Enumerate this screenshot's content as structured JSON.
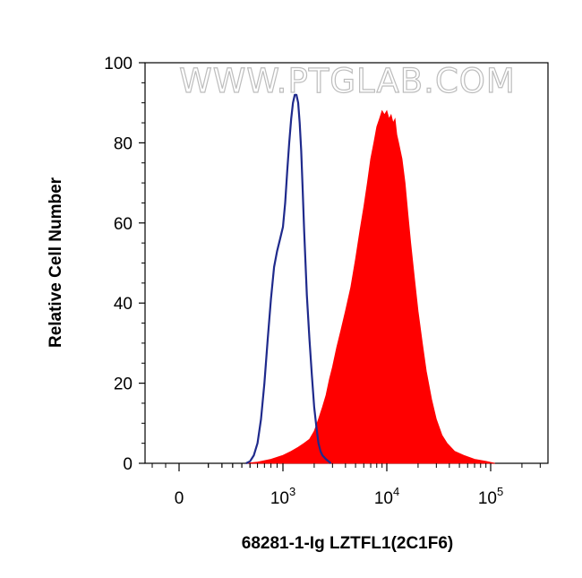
{
  "watermark": "WWW.PTGLAB.COM",
  "chart_data": {
    "type": "area",
    "xlabel": "68281-1-Ig LZTFL1(2C1F6)",
    "ylabel": "Relative Cell Number",
    "x_scale": "biexponential (log for decades)",
    "xlim": [
      -600,
      400000
    ],
    "ylim": [
      0,
      100
    ],
    "y_ticks": [
      0,
      20,
      40,
      60,
      80,
      100
    ],
    "x_ticks": [
      {
        "value": 0,
        "base": "0",
        "exp": ""
      },
      {
        "value": 1000,
        "base": "10",
        "exp": "3"
      },
      {
        "value": 10000,
        "base": "10",
        "exp": "4"
      },
      {
        "value": 100000,
        "base": "10",
        "exp": "5"
      }
    ],
    "grid": false,
    "series": [
      {
        "style": "outline",
        "color": "#1f2a8c",
        "points": [
          [
            450,
            0
          ],
          [
            500,
            0.5
          ],
          [
            550,
            2
          ],
          [
            600,
            5
          ],
          [
            650,
            11
          ],
          [
            700,
            20
          ],
          [
            750,
            31
          ],
          [
            800,
            41
          ],
          [
            850,
            49
          ],
          [
            900,
            53
          ],
          [
            950,
            56
          ],
          [
            1000,
            59
          ],
          [
            1050,
            65
          ],
          [
            1100,
            73
          ],
          [
            1150,
            80
          ],
          [
            1200,
            86
          ],
          [
            1250,
            90
          ],
          [
            1300,
            92
          ],
          [
            1350,
            92
          ],
          [
            1400,
            90
          ],
          [
            1450,
            85
          ],
          [
            1500,
            78
          ],
          [
            1550,
            68
          ],
          [
            1600,
            58
          ],
          [
            1650,
            50
          ],
          [
            1700,
            42
          ],
          [
            1800,
            31
          ],
          [
            1900,
            22
          ],
          [
            2000,
            14
          ],
          [
            2100,
            9
          ],
          [
            2200,
            5
          ],
          [
            2300,
            3
          ],
          [
            2400,
            2
          ],
          [
            2600,
            1
          ],
          [
            2900,
            0
          ]
        ]
      },
      {
        "style": "filled",
        "color": "#ff0000",
        "points": [
          [
            450,
            0
          ],
          [
            600,
            0.3
          ],
          [
            800,
            1
          ],
          [
            1000,
            2
          ],
          [
            1200,
            3
          ],
          [
            1400,
            4
          ],
          [
            1600,
            5
          ],
          [
            1800,
            6
          ],
          [
            2000,
            8
          ],
          [
            2200,
            11
          ],
          [
            2400,
            14
          ],
          [
            2600,
            17
          ],
          [
            2800,
            21
          ],
          [
            3000,
            24
          ],
          [
            3300,
            29
          ],
          [
            3600,
            33
          ],
          [
            4000,
            38
          ],
          [
            4500,
            44
          ],
          [
            5000,
            51
          ],
          [
            5500,
            58
          ],
          [
            6000,
            64
          ],
          [
            6500,
            70
          ],
          [
            7000,
            76
          ],
          [
            7500,
            80
          ],
          [
            8000,
            84
          ],
          [
            8500,
            86
          ],
          [
            9000,
            88
          ],
          [
            9500,
            87
          ],
          [
            10000,
            88
          ],
          [
            10500,
            86
          ],
          [
            11000,
            87
          ],
          [
            11500,
            85
          ],
          [
            12000,
            86
          ],
          [
            12500,
            82
          ],
          [
            13000,
            80
          ],
          [
            14000,
            76
          ],
          [
            15000,
            70
          ],
          [
            16000,
            62
          ],
          [
            17000,
            55
          ],
          [
            18500,
            46
          ],
          [
            20000,
            38
          ],
          [
            22000,
            30
          ],
          [
            24000,
            23
          ],
          [
            27000,
            16
          ],
          [
            30000,
            11
          ],
          [
            34000,
            7
          ],
          [
            38000,
            5
          ],
          [
            45000,
            3
          ],
          [
            55000,
            2
          ],
          [
            70000,
            1
          ],
          [
            90000,
            0.5
          ],
          [
            110000,
            0
          ]
        ]
      }
    ]
  }
}
